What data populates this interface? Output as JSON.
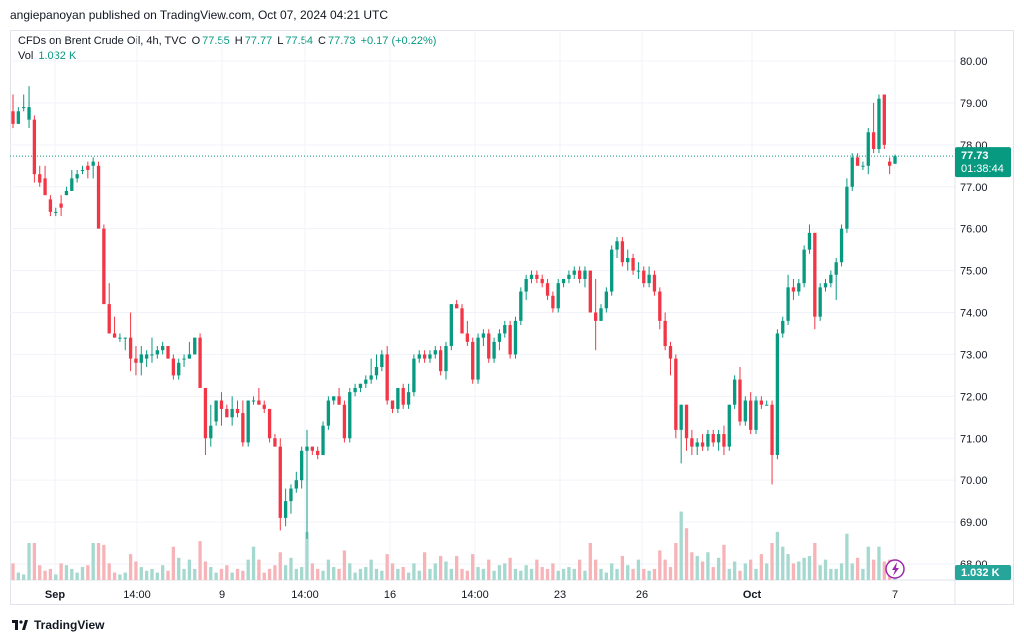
{
  "header": {
    "published_text": "angiepanoyan published on TradingView.com, Oct 07, 2024 04:21 UTC"
  },
  "legend": {
    "symbol": "CFDs on Brent Crude Oil, 4h, TVC",
    "o_label": "O",
    "o_value": "77.55",
    "h_label": "H",
    "h_value": "77.77",
    "l_label": "L",
    "l_value": "77.54",
    "c_label": "C",
    "c_value": "77.73",
    "change": "+0.17 (+0.22%)",
    "vol_label": "Vol",
    "vol_value": "1.032 K"
  },
  "footer": {
    "brand": "TradingView"
  },
  "colors": {
    "up": "#089981",
    "down": "#f23645",
    "up_vol": "#a5d8cf",
    "down_vol": "#f7b4b8",
    "grid": "#f0f3fa",
    "text": "#131722"
  },
  "chart_data": {
    "type": "candlestick",
    "ylim": [
      67.5,
      80.5
    ],
    "y_ticks": [
      "80.00",
      "79.00",
      "78.00",
      "77.00",
      "76.00",
      "75.00",
      "74.00",
      "73.00",
      "72.00",
      "71.00",
      "70.00",
      "69.00",
      "68.00"
    ],
    "x_ticks": [
      "Sep",
      "14:00",
      "9",
      "14:00",
      "16",
      "14:00",
      "23",
      "26",
      "Oct",
      "7"
    ],
    "last_price": "77.73",
    "countdown": "01:38:44",
    "volume_label": "1.032 K",
    "ohlc": [
      [
        78.8,
        79.2,
        78.4,
        78.5
      ],
      [
        78.5,
        78.9,
        78.5,
        78.8
      ],
      [
        78.9,
        79.2,
        78.8,
        78.9
      ],
      [
        78.6,
        79.4,
        78.4,
        78.9
      ],
      [
        78.6,
        78.7,
        77.1,
        77.3
      ],
      [
        77.3,
        77.5,
        77.0,
        77.1
      ],
      [
        77.2,
        77.5,
        76.8,
        76.8
      ],
      [
        76.7,
        76.8,
        76.3,
        76.4
      ],
      [
        76.4,
        76.5,
        76.3,
        76.4
      ],
      [
        76.6,
        76.8,
        76.3,
        76.5
      ],
      [
        76.8,
        77.0,
        76.8,
        76.9
      ],
      [
        76.9,
        77.4,
        76.9,
        77.2
      ],
      [
        77.2,
        77.4,
        77.1,
        77.3
      ],
      [
        77.4,
        77.5,
        77.3,
        77.4
      ],
      [
        77.5,
        77.6,
        77.2,
        77.4
      ],
      [
        77.5,
        77.7,
        77.2,
        77.6
      ],
      [
        77.5,
        77.6,
        76.1,
        76.0
      ],
      [
        76.0,
        76.1,
        74.3,
        74.2
      ],
      [
        74.2,
        74.7,
        73.6,
        73.5
      ],
      [
        73.5,
        73.9,
        73.4,
        73.4
      ],
      [
        73.4,
        73.5,
        73.3,
        73.4
      ],
      [
        73.4,
        73.4,
        73.1,
        73.4
      ],
      [
        73.4,
        74.0,
        72.6,
        72.9
      ],
      [
        72.9,
        73.2,
        72.5,
        72.8
      ],
      [
        72.8,
        73.2,
        72.5,
        73.0
      ],
      [
        72.9,
        73.1,
        72.7,
        73.0
      ],
      [
        73.0,
        73.4,
        72.8,
        73.0
      ],
      [
        73.0,
        73.2,
        72.9,
        73.1
      ],
      [
        73.1,
        73.3,
        73.0,
        73.2
      ],
      [
        73.2,
        73.2,
        72.9,
        72.9
      ],
      [
        72.9,
        73.0,
        72.4,
        72.5
      ],
      [
        72.5,
        72.9,
        72.4,
        72.8
      ],
      [
        72.9,
        73.0,
        72.7,
        72.9
      ],
      [
        72.9,
        73.3,
        72.9,
        73.0
      ],
      [
        73.0,
        73.4,
        73.0,
        73.4
      ],
      [
        73.4,
        73.5,
        72.2,
        72.2
      ],
      [
        72.2,
        72.2,
        70.6,
        71.0
      ],
      [
        71.0,
        71.8,
        70.8,
        71.3
      ],
      [
        71.4,
        71.9,
        71.3,
        71.9
      ],
      [
        71.9,
        72.1,
        71.3,
        71.7
      ],
      [
        71.7,
        71.8,
        71.5,
        71.5
      ],
      [
        71.5,
        72.0,
        71.3,
        71.7
      ],
      [
        71.7,
        71.9,
        71.5,
        71.6
      ],
      [
        71.6,
        71.9,
        70.8,
        70.9
      ],
      [
        70.9,
        71.9,
        70.8,
        71.9
      ],
      [
        71.9,
        72.0,
        71.8,
        71.9
      ],
      [
        71.9,
        72.2,
        71.8,
        71.8
      ],
      [
        71.8,
        71.9,
        71.6,
        71.7
      ],
      [
        71.7,
        71.7,
        70.9,
        71.0
      ],
      [
        71.0,
        71.1,
        70.8,
        70.8
      ],
      [
        70.8,
        71.0,
        68.8,
        69.1
      ],
      [
        69.1,
        69.8,
        68.9,
        69.5
      ],
      [
        69.5,
        69.9,
        69.2,
        69.8
      ],
      [
        69.8,
        70.2,
        69.7,
        70.0
      ],
      [
        70.0,
        70.8,
        69.8,
        70.7
      ],
      [
        70.7,
        71.2,
        68.6,
        70.8
      ],
      [
        70.8,
        70.8,
        70.6,
        70.7
      ],
      [
        70.7,
        70.8,
        70.5,
        70.6
      ],
      [
        70.6,
        71.4,
        70.6,
        71.3
      ],
      [
        71.3,
        72.0,
        71.2,
        71.9
      ],
      [
        71.9,
        72.0,
        71.8,
        72.0
      ],
      [
        72.0,
        72.2,
        71.8,
        71.8
      ],
      [
        71.8,
        71.9,
        70.9,
        71.0
      ],
      [
        71.0,
        72.2,
        70.9,
        72.1
      ],
      [
        72.1,
        72.3,
        72.0,
        72.2
      ],
      [
        72.2,
        72.3,
        72.1,
        72.3
      ],
      [
        72.3,
        72.5,
        72.2,
        72.4
      ],
      [
        72.4,
        72.9,
        72.3,
        72.5
      ],
      [
        72.5,
        73.0,
        72.4,
        72.7
      ],
      [
        72.7,
        73.1,
        72.6,
        73.0
      ],
      [
        73.0,
        73.2,
        71.8,
        71.9
      ],
      [
        71.9,
        71.9,
        71.6,
        71.7
      ],
      [
        71.7,
        72.2,
        71.6,
        72.2
      ],
      [
        72.2,
        72.3,
        71.7,
        71.8
      ],
      [
        71.8,
        72.3,
        71.7,
        72.1
      ],
      [
        72.1,
        73.0,
        72.0,
        72.9
      ],
      [
        72.9,
        73.1,
        72.8,
        73.0
      ],
      [
        73.0,
        73.1,
        72.8,
        72.9
      ],
      [
        72.9,
        73.1,
        72.8,
        73.0
      ],
      [
        73.0,
        73.2,
        72.9,
        73.1
      ],
      [
        73.1,
        73.2,
        72.5,
        72.6
      ],
      [
        72.6,
        73.3,
        72.4,
        73.2
      ],
      [
        73.2,
        74.2,
        73.1,
        74.2
      ],
      [
        74.2,
        74.3,
        74.1,
        74.1
      ],
      [
        74.1,
        74.2,
        73.5,
        73.5
      ],
      [
        73.5,
        73.8,
        73.2,
        73.3
      ],
      [
        73.3,
        73.4,
        72.3,
        72.4
      ],
      [
        72.4,
        73.5,
        72.3,
        73.4
      ],
      [
        73.4,
        73.6,
        73.2,
        73.5
      ],
      [
        73.5,
        73.6,
        72.8,
        72.9
      ],
      [
        72.9,
        73.4,
        72.8,
        73.3
      ],
      [
        73.3,
        73.6,
        73.1,
        73.5
      ],
      [
        73.5,
        73.8,
        73.4,
        73.7
      ],
      [
        73.7,
        73.8,
        72.9,
        73.0
      ],
      [
        73.0,
        73.9,
        72.9,
        73.8
      ],
      [
        73.8,
        74.6,
        73.7,
        74.5
      ],
      [
        74.5,
        74.9,
        74.3,
        74.8
      ],
      [
        74.8,
        75.0,
        74.7,
        74.9
      ],
      [
        74.9,
        75.0,
        74.7,
        74.8
      ],
      [
        74.8,
        74.9,
        74.6,
        74.7
      ],
      [
        74.7,
        74.8,
        74.3,
        74.4
      ],
      [
        74.4,
        74.5,
        74.0,
        74.1
      ],
      [
        74.1,
        74.8,
        74.0,
        74.7
      ],
      [
        74.7,
        74.8,
        74.6,
        74.8
      ],
      [
        74.8,
        75.0,
        74.7,
        74.9
      ],
      [
        74.9,
        75.1,
        74.8,
        75.0
      ],
      [
        75.0,
        75.1,
        74.7,
        74.8
      ],
      [
        74.8,
        75.1,
        74.6,
        75.0
      ],
      [
        75.0,
        75.0,
        74.0,
        74.0
      ],
      [
        74.0,
        74.8,
        73.1,
        73.8
      ],
      [
        73.8,
        74.2,
        73.8,
        74.1
      ],
      [
        74.1,
        74.6,
        74.0,
        74.5
      ],
      [
        74.5,
        75.6,
        74.4,
        75.5
      ],
      [
        75.5,
        75.8,
        75.3,
        75.7
      ],
      [
        75.7,
        75.8,
        75.1,
        75.2
      ],
      [
        75.2,
        75.5,
        75.0,
        75.3
      ],
      [
        75.3,
        75.4,
        74.9,
        75.0
      ],
      [
        75.0,
        75.2,
        74.8,
        75.0
      ],
      [
        75.0,
        75.1,
        74.6,
        74.7
      ],
      [
        74.7,
        75.1,
        74.6,
        74.9
      ],
      [
        74.9,
        75.0,
        74.4,
        74.5
      ],
      [
        74.5,
        74.6,
        73.6,
        73.8
      ],
      [
        73.8,
        74.0,
        73.1,
        73.2
      ],
      [
        73.2,
        73.3,
        72.5,
        72.9
      ],
      [
        72.9,
        73.0,
        71.0,
        71.2
      ],
      [
        71.2,
        71.8,
        70.4,
        71.8
      ],
      [
        71.8,
        71.8,
        70.7,
        71.0
      ],
      [
        71.0,
        71.2,
        70.6,
        70.8
      ],
      [
        70.8,
        71.0,
        70.6,
        70.9
      ],
      [
        70.9,
        71.1,
        70.7,
        70.8
      ],
      [
        70.8,
        71.2,
        70.7,
        71.1
      ],
      [
        71.1,
        71.2,
        70.8,
        70.9
      ],
      [
        70.9,
        71.2,
        70.7,
        71.1
      ],
      [
        71.1,
        71.3,
        70.6,
        70.8
      ],
      [
        70.8,
        71.8,
        70.7,
        71.8
      ],
      [
        71.8,
        72.5,
        71.7,
        72.4
      ],
      [
        72.4,
        72.7,
        71.3,
        71.4
      ],
      [
        71.4,
        72.0,
        71.3,
        71.9
      ],
      [
        71.9,
        72.1,
        71.1,
        71.2
      ],
      [
        71.2,
        72.0,
        71.1,
        71.9
      ],
      [
        71.9,
        72.0,
        71.7,
        71.8
      ],
      [
        71.8,
        71.9,
        71.8,
        71.8
      ],
      [
        71.8,
        71.9,
        69.9,
        70.6
      ],
      [
        70.6,
        73.6,
        70.5,
        73.5
      ],
      [
        73.5,
        73.9,
        73.4,
        73.8
      ],
      [
        73.8,
        74.9,
        73.7,
        74.6
      ],
      [
        74.6,
        74.8,
        74.3,
        74.5
      ],
      [
        74.5,
        74.8,
        74.4,
        74.7
      ],
      [
        74.7,
        75.6,
        74.6,
        75.5
      ],
      [
        75.5,
        76.1,
        75.4,
        75.9
      ],
      [
        75.9,
        75.9,
        73.6,
        73.9
      ],
      [
        73.9,
        74.7,
        73.8,
        74.6
      ],
      [
        74.6,
        74.8,
        74.5,
        74.7
      ],
      [
        74.7,
        75.0,
        74.6,
        74.9
      ],
      [
        74.9,
        75.3,
        74.3,
        75.2
      ],
      [
        75.2,
        76.1,
        75.1,
        76.0
      ],
      [
        76.0,
        77.2,
        75.9,
        77.0
      ],
      [
        77.0,
        77.8,
        76.9,
        77.7
      ],
      [
        77.7,
        77.8,
        77.5,
        77.5
      ],
      [
        77.5,
        77.6,
        77.4,
        77.5
      ],
      [
        77.5,
        78.4,
        77.3,
        78.3
      ],
      [
        78.3,
        79.0,
        77.8,
        77.9
      ],
      [
        77.9,
        79.2,
        77.8,
        79.1
      ],
      [
        79.2,
        79.2,
        77.9,
        78.0
      ],
      [
        77.6,
        77.7,
        77.3,
        77.5
      ],
      [
        77.55,
        77.77,
        77.54,
        77.73
      ]
    ],
    "volume": [
      0.45,
      0.2,
      0.15,
      1.0,
      1.0,
      0.4,
      0.25,
      0.3,
      0.15,
      0.45,
      0.4,
      0.3,
      0.2,
      0.35,
      0.4,
      1.0,
      1.0,
      0.95,
      0.45,
      0.2,
      0.15,
      0.2,
      0.7,
      0.5,
      0.35,
      0.25,
      0.3,
      0.2,
      0.4,
      0.25,
      0.9,
      0.6,
      0.3,
      0.55,
      0.3,
      1.05,
      0.5,
      0.35,
      0.2,
      0.3,
      0.4,
      0.2,
      0.3,
      0.25,
      0.55,
      0.9,
      0.55,
      0.2,
      0.3,
      0.4,
      0.75,
      0.4,
      0.6,
      0.3,
      0.35,
      1.3,
      0.45,
      0.3,
      0.25,
      0.55,
      0.35,
      0.3,
      0.8,
      0.45,
      0.2,
      0.3,
      0.35,
      0.55,
      0.3,
      0.25,
      0.7,
      0.45,
      0.3,
      0.35,
      0.2,
      0.45,
      0.25,
      0.75,
      0.3,
      0.45,
      0.65,
      0.5,
      0.3,
      0.65,
      0.3,
      0.25,
      0.7,
      0.35,
      0.3,
      0.55,
      0.25,
      0.4,
      0.45,
      0.6,
      0.3,
      0.25,
      0.4,
      0.3,
      0.55,
      0.35,
      0.3,
      0.45,
      0.25,
      0.3,
      0.35,
      0.3,
      0.55,
      0.25,
      1.0,
      0.55,
      0.3,
      0.2,
      0.45,
      0.3,
      0.65,
      0.4,
      0.3,
      0.55,
      0.3,
      0.25,
      0.3,
      0.8,
      0.55,
      0.35,
      1.0,
      1.85,
      1.4,
      0.75,
      0.65,
      0.5,
      0.75,
      0.35,
      0.6,
      0.95,
      0.3,
      0.5,
      0.25,
      0.45,
      0.55,
      0.3,
      0.7,
      0.45,
      1.0,
      1.3,
      0.9,
      0.7,
      0.45,
      0.5,
      0.6,
      0.65,
      1.0,
      0.4,
      0.55,
      0.3,
      0.3,
      0.45,
      1.25,
      0.45,
      0.6,
      0.3,
      0.9,
      0.55,
      0.9,
      0.5,
      0.55,
      0.2
    ]
  }
}
